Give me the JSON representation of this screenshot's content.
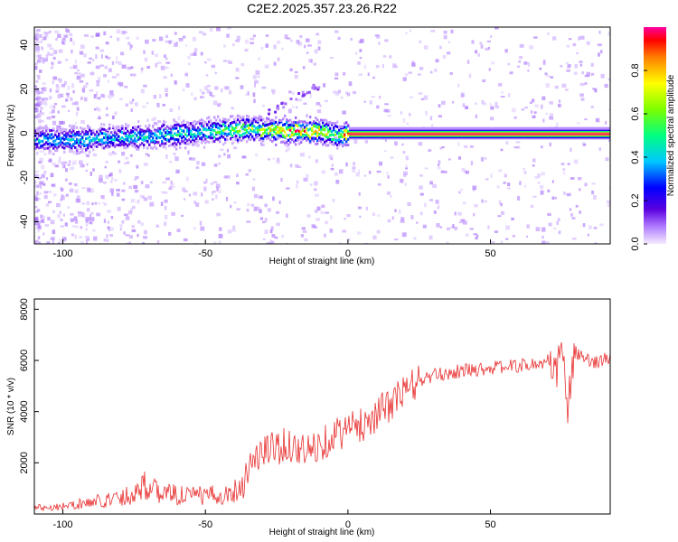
{
  "chart_data": [
    {
      "type": "heatmap",
      "title": "C2E2.2025.357.23.26.R22",
      "xlabel": "Height of straight line (km)",
      "ylabel": "Frequency (Hz)",
      "xlim": [
        -110,
        92
      ],
      "ylim": [
        -50,
        48
      ],
      "xticks": [
        -100,
        -50,
        0,
        50
      ],
      "yticks": [
        -40,
        -20,
        0,
        20,
        40
      ],
      "colorbar": {
        "label": "Normalized spectral amplitude",
        "range": [
          0,
          1
        ],
        "ticks": [
          "0.0",
          "0.2",
          "0.4",
          "0.6",
          "0.8"
        ]
      },
      "ridge": [
        {
          "x": -108,
          "f": -3,
          "a": 0.35
        },
        {
          "x": -95,
          "f": -3,
          "a": 0.4
        },
        {
          "x": -80,
          "f": -2,
          "a": 0.4
        },
        {
          "x": -65,
          "f": -1,
          "a": 0.4
        },
        {
          "x": -50,
          "f": 1,
          "a": 0.45
        },
        {
          "x": -35,
          "f": 2,
          "a": 0.6
        },
        {
          "x": -20,
          "f": 1,
          "a": 0.8
        },
        {
          "x": -10,
          "f": 1,
          "a": 0.7
        },
        {
          "x": -4,
          "f": -1,
          "a": 0.5
        },
        {
          "x": 0,
          "f": 0,
          "a": 1.0
        },
        {
          "x": 14,
          "f": 0,
          "a": 1.0
        },
        {
          "x": 92,
          "f": 0,
          "a": 1.0
        }
      ]
    },
    {
      "type": "line",
      "xlabel": "Height of straight line (km)",
      "ylabel": "SNR (10 * v/v)",
      "xlim": [
        -110,
        92
      ],
      "ylim": [
        0,
        8400
      ],
      "xticks": [
        -100,
        -50,
        0,
        50
      ],
      "yticks": [
        2000,
        4000,
        6000,
        8000
      ],
      "series": [
        {
          "name": "SNR",
          "color": "#e83030",
          "trend": [
            [
              -110,
              250
            ],
            [
              -100,
              300
            ],
            [
              -90,
              450
            ],
            [
              -80,
              650
            ],
            [
              -75,
              800
            ],
            [
              -72,
              1200
            ],
            [
              -68,
              900
            ],
            [
              -60,
              750
            ],
            [
              -50,
              700
            ],
            [
              -42,
              800
            ],
            [
              -38,
              1000
            ],
            [
              -34,
              2000
            ],
            [
              -30,
              2400
            ],
            [
              -26,
              2600
            ],
            [
              -20,
              2700
            ],
            [
              -15,
              2400
            ],
            [
              -10,
              2700
            ],
            [
              -5,
              3100
            ],
            [
              0,
              3300
            ],
            [
              5,
              3500
            ],
            [
              10,
              3900
            ],
            [
              15,
              4300
            ],
            [
              20,
              4800
            ],
            [
              25,
              5200
            ],
            [
              30,
              5400
            ],
            [
              40,
              5600
            ],
            [
              50,
              5700
            ],
            [
              60,
              5800
            ],
            [
              70,
              5900
            ],
            [
              72,
              5200
            ],
            [
              75,
              6500
            ],
            [
              77,
              4200
            ],
            [
              80,
              6300
            ],
            [
              85,
              5900
            ],
            [
              92,
              6100
            ]
          ]
        }
      ]
    }
  ]
}
